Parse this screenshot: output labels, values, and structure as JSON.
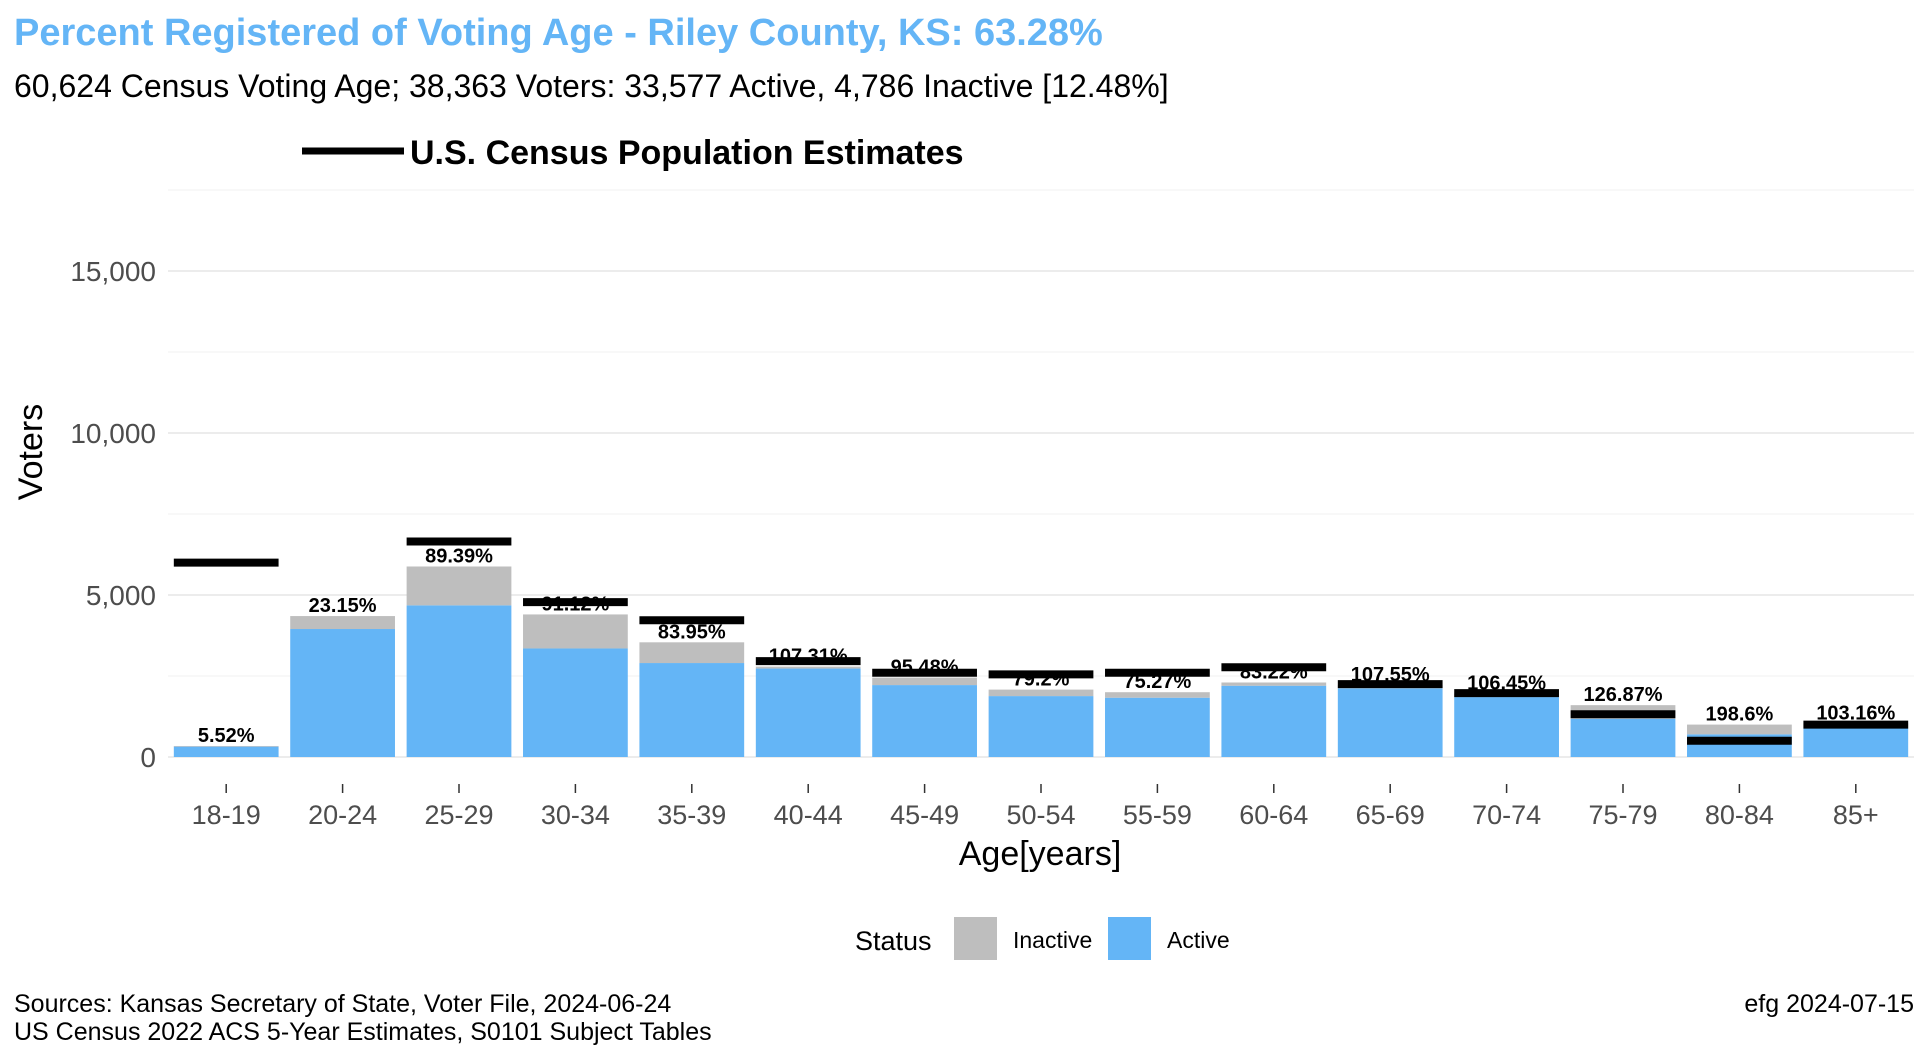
{
  "title": "Percent Registered of Voting Age - Riley County, KS: 63.28%",
  "subtitle": "60,624 Census Voting Age; 38,363 Voters:  33,577 Active, 4,786 Inactive [12.48%]",
  "census_legend_label": "U.S. Census Population Estimates",
  "legend": {
    "title": "Status",
    "items": [
      {
        "label": "Inactive",
        "color": "#bebebe"
      },
      {
        "label": "Active",
        "color": "#64b5f6"
      }
    ]
  },
  "caption_left": [
    "Sources: Kansas Secretary of State, Voter File, 2024-06-24",
    "US Census 2022 ACS 5-Year Estimates, S0101 Subject Tables"
  ],
  "caption_right": "efg 2024-07-15",
  "chart_data": {
    "type": "bar",
    "stacked": true,
    "xlabel": "Age[years]",
    "ylabel": "Voters",
    "ylim": [
      0,
      17500
    ],
    "yticks": [
      0,
      5000,
      10000,
      15000
    ],
    "ytick_labels": [
      "0",
      "5,000",
      "10,000",
      "15,000"
    ],
    "grid": true,
    "legend_position": "bottom",
    "categories": [
      "18-19",
      "20-24",
      "25-29",
      "30-34",
      "35-39",
      "40-44",
      "45-49",
      "50-54",
      "55-59",
      "60-64",
      "65-69",
      "70-74",
      "75-79",
      "80-84",
      "85+"
    ],
    "series": [
      {
        "name": "Active",
        "color": "#64b5f6",
        "values": [
          320,
          3950,
          4680,
          3350,
          2900,
          2730,
          2220,
          1880,
          1830,
          2200,
          2120,
          1850,
          1180,
          700,
          880
        ]
      },
      {
        "name": "Inactive",
        "color": "#bebebe",
        "values": [
          20,
          400,
          1200,
          1050,
          640,
          60,
          230,
          200,
          170,
          100,
          100,
          110,
          420,
          300,
          160
        ]
      }
    ],
    "census_estimates": [
      6000,
      0,
      6650,
      4780,
      4220,
      2960,
      2600,
      2550,
      2600,
      2770,
      2250,
      1970,
      1320,
      500,
      1000
    ],
    "percent_labels": [
      "5.52%",
      "23.15%",
      "89.39%",
      "91.12%",
      "83.95%",
      "107.31%",
      "95.48%",
      "79.2%",
      "75.27%",
      "83.22%",
      "107.55%",
      "106.45%",
      "126.87%",
      "198.6%",
      "103.16%"
    ]
  }
}
